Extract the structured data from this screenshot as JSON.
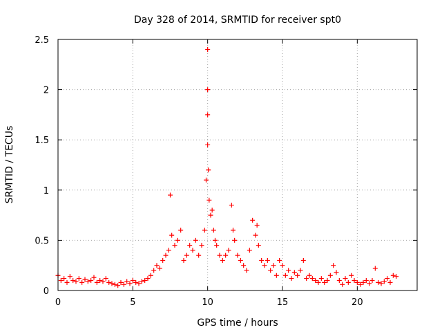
{
  "chart_data": {
    "type": "scatter",
    "title": "Day 328 of 2014, SRMTID for receiver spt0",
    "xlabel": "GPS time / hours",
    "ylabel": "SRMTID / TECUs",
    "xlim": [
      0,
      24
    ],
    "ylim": [
      0,
      2.5
    ],
    "xticks": [
      0,
      5,
      10,
      15,
      20
    ],
    "xtick_labels": [
      "0",
      "5",
      "10",
      "15",
      "20"
    ],
    "yticks": [
      0,
      0.5,
      1,
      1.5,
      2,
      2.5
    ],
    "ytick_labels": [
      "0",
      "0.5",
      "1",
      "1.5",
      "2",
      "2.5"
    ],
    "grid": true,
    "marker": "+",
    "series": [
      {
        "name": "SRMTID",
        "color": "#ff0000",
        "x": [
          0.0,
          0.2,
          0.4,
          0.6,
          0.8,
          1.0,
          1.2,
          1.4,
          1.6,
          1.8,
          2.0,
          2.2,
          2.4,
          2.6,
          2.8,
          3.0,
          3.2,
          3.4,
          3.6,
          3.8,
          4.0,
          4.2,
          4.4,
          4.6,
          4.8,
          5.0,
          5.2,
          5.4,
          5.6,
          5.8,
          6.0,
          6.2,
          6.4,
          6.6,
          6.8,
          7.0,
          7.2,
          7.4,
          7.5,
          7.6,
          7.8,
          8.0,
          8.2,
          8.4,
          8.6,
          8.8,
          9.0,
          9.2,
          9.4,
          9.6,
          9.8,
          9.9,
          10.0,
          10.0,
          10.0,
          10.0,
          10.05,
          10.1,
          10.2,
          10.3,
          10.4,
          10.5,
          10.6,
          10.8,
          11.0,
          11.2,
          11.4,
          11.6,
          11.7,
          11.8,
          12.0,
          12.2,
          12.4,
          12.6,
          12.8,
          13.0,
          13.2,
          13.3,
          13.4,
          13.6,
          13.8,
          14.0,
          14.2,
          14.4,
          14.6,
          14.8,
          15.0,
          15.2,
          15.4,
          15.6,
          15.8,
          16.0,
          16.2,
          16.4,
          16.6,
          16.8,
          17.0,
          17.2,
          17.4,
          17.6,
          17.8,
          18.0,
          18.2,
          18.4,
          18.6,
          18.8,
          19.0,
          19.2,
          19.4,
          19.6,
          19.8,
          20.0,
          20.2,
          20.4,
          20.6,
          20.8,
          21.0,
          21.2,
          21.4,
          21.6,
          21.8,
          22.0,
          22.2,
          22.4,
          22.6
        ],
        "y": [
          0.15,
          0.1,
          0.12,
          0.08,
          0.14,
          0.1,
          0.09,
          0.12,
          0.08,
          0.11,
          0.09,
          0.1,
          0.13,
          0.08,
          0.1,
          0.09,
          0.12,
          0.08,
          0.07,
          0.06,
          0.05,
          0.08,
          0.06,
          0.09,
          0.07,
          0.1,
          0.08,
          0.07,
          0.09,
          0.1,
          0.12,
          0.15,
          0.2,
          0.25,
          0.22,
          0.3,
          0.35,
          0.4,
          0.95,
          0.55,
          0.45,
          0.5,
          0.6,
          0.3,
          0.35,
          0.45,
          0.4,
          0.5,
          0.35,
          0.45,
          0.6,
          1.1,
          1.45,
          1.75,
          2.0,
          2.4,
          1.2,
          0.9,
          0.75,
          0.8,
          0.6,
          0.5,
          0.45,
          0.35,
          0.3,
          0.35,
          0.4,
          0.85,
          0.6,
          0.5,
          0.35,
          0.3,
          0.25,
          0.2,
          0.4,
          0.7,
          0.55,
          0.65,
          0.45,
          0.3,
          0.25,
          0.3,
          0.2,
          0.25,
          0.15,
          0.3,
          0.25,
          0.15,
          0.2,
          0.12,
          0.18,
          0.15,
          0.2,
          0.3,
          0.12,
          0.15,
          0.12,
          0.1,
          0.08,
          0.12,
          0.08,
          0.1,
          0.15,
          0.25,
          0.18,
          0.1,
          0.06,
          0.12,
          0.08,
          0.15,
          0.1,
          0.08,
          0.06,
          0.08,
          0.1,
          0.07,
          0.1,
          0.22,
          0.08,
          0.07,
          0.09,
          0.12,
          0.08,
          0.15,
          0.14
        ]
      }
    ]
  }
}
